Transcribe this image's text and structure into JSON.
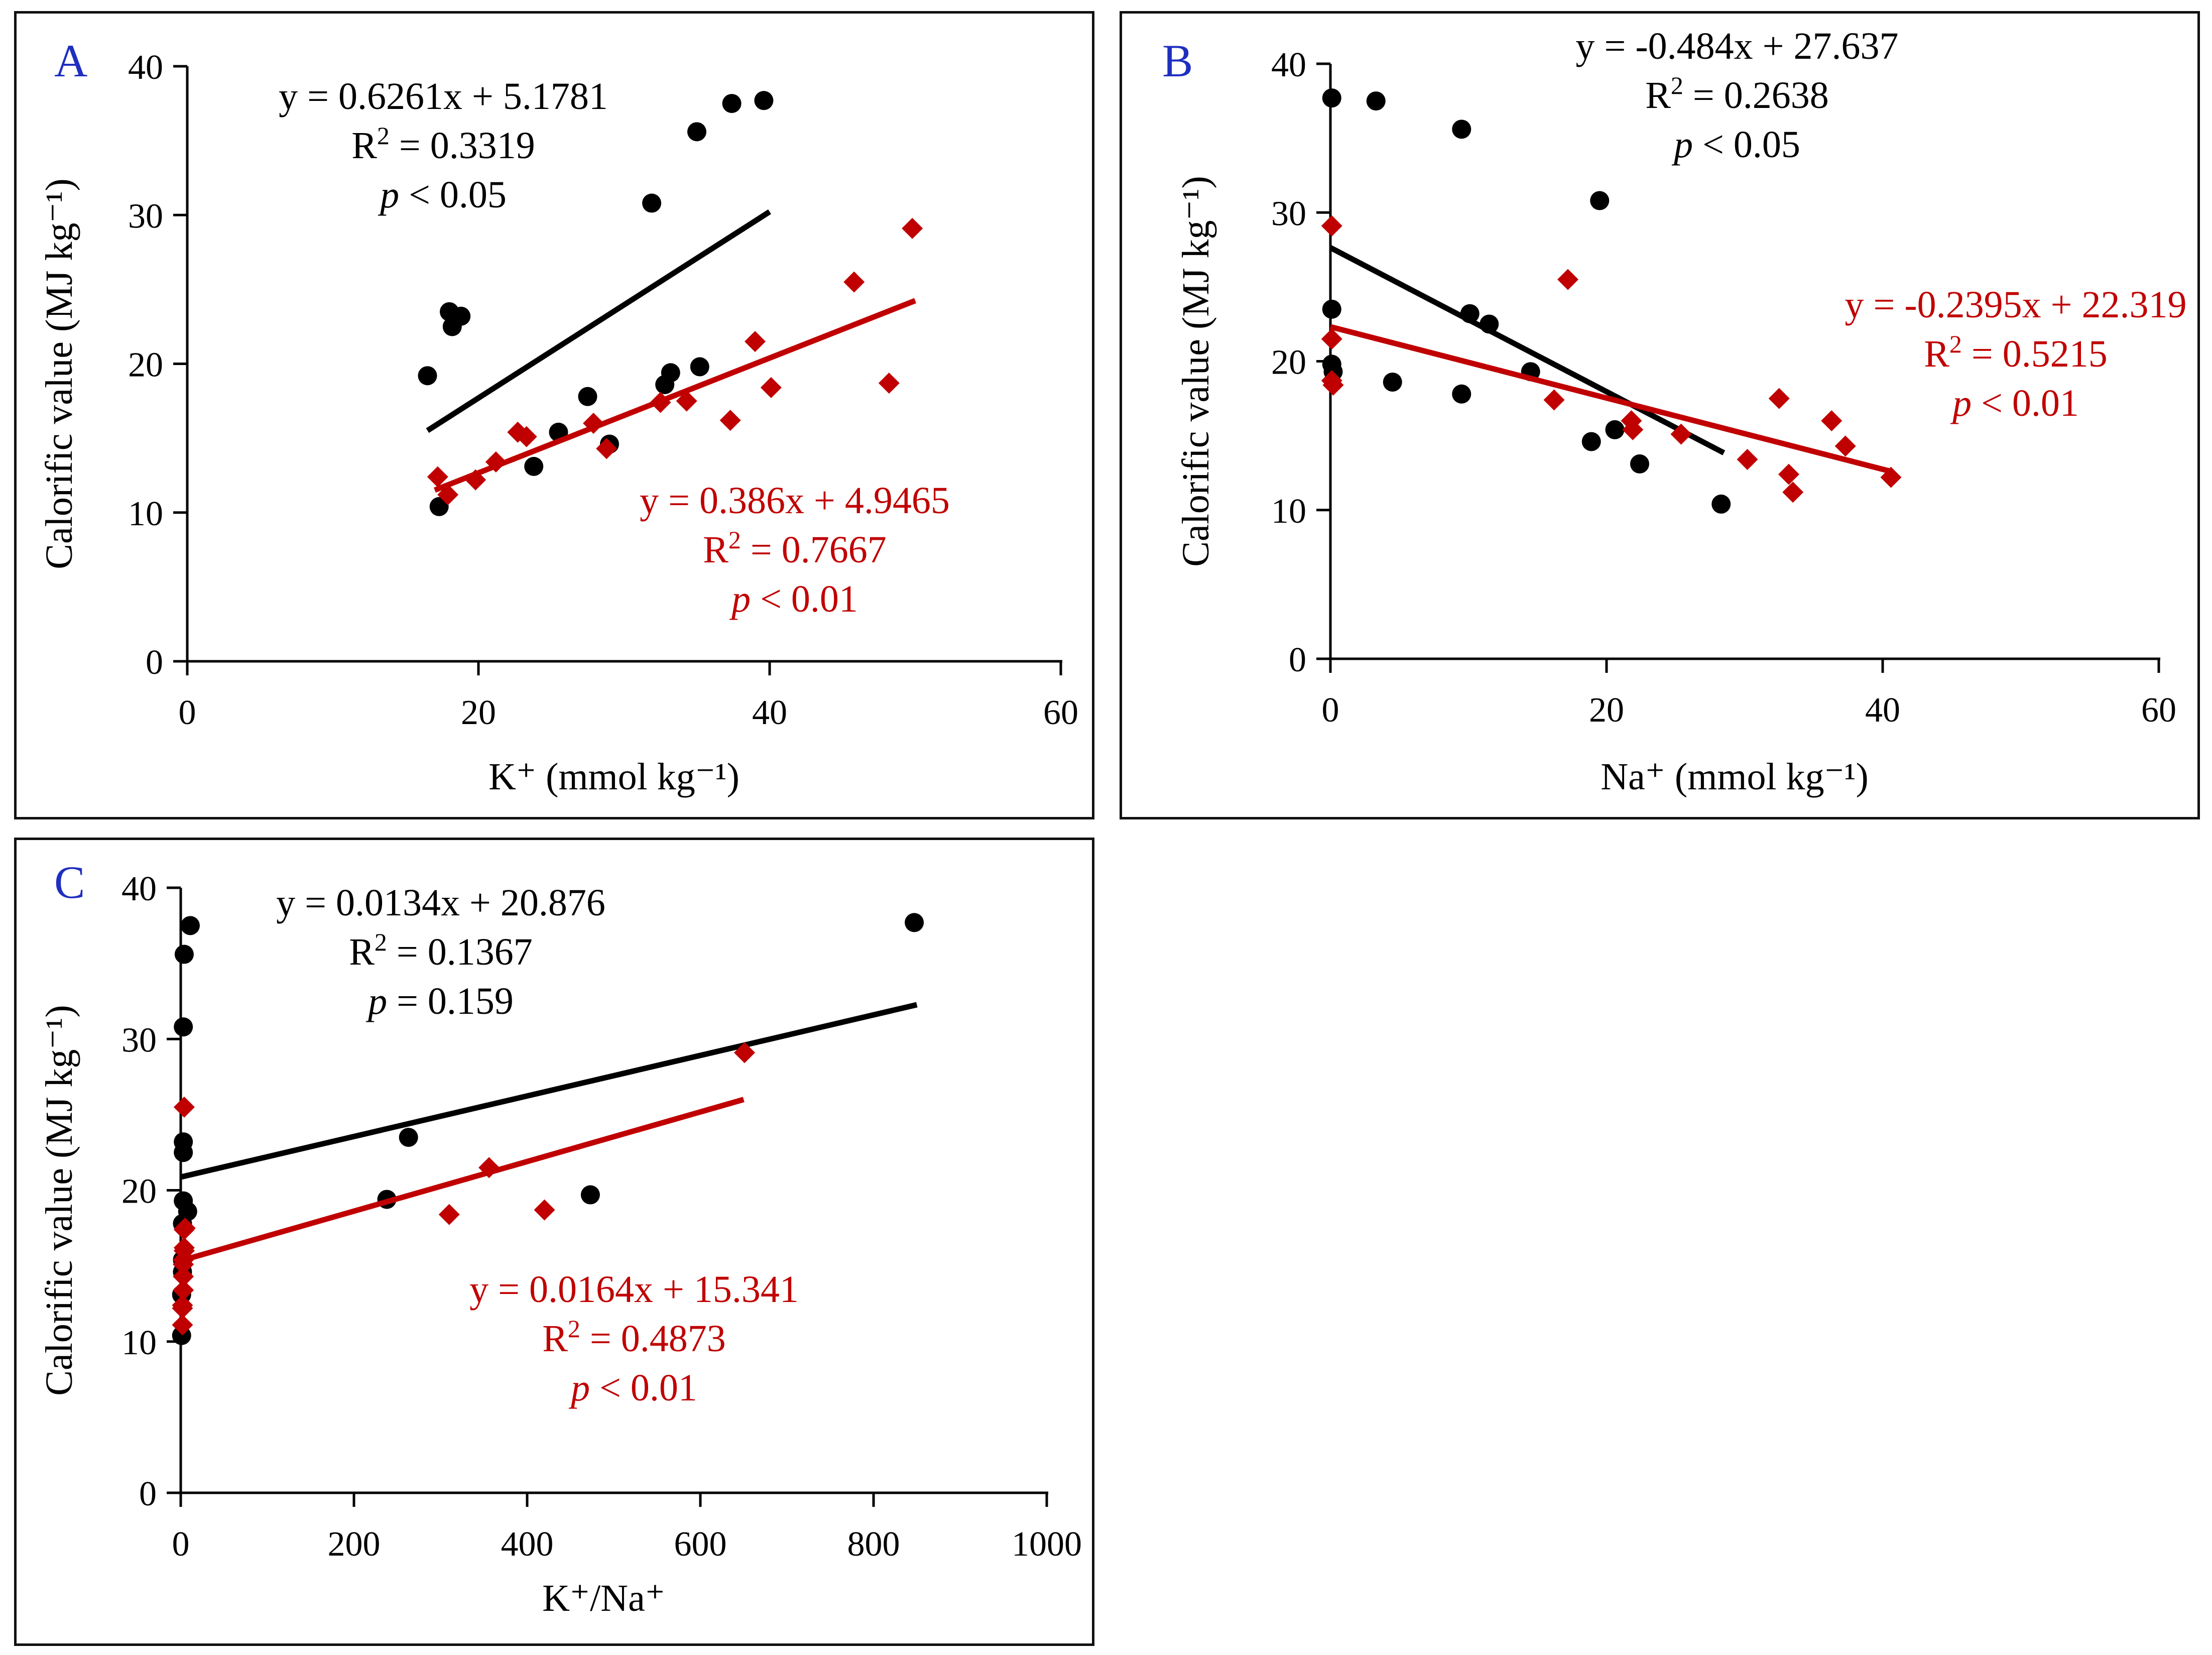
{
  "chart_data": [
    {
      "id": "A",
      "type": "scatter",
      "panel_label": "A",
      "xlabel": "K⁺ (mmol kg⁻¹)",
      "ylabel": "Calorific value (MJ kg⁻¹)",
      "xlim": [
        0,
        60
      ],
      "ylim": [
        0,
        40
      ],
      "xticks": [
        "0",
        "20",
        "40",
        "60"
      ],
      "yticks": [
        "0",
        "10",
        "20",
        "30",
        "40"
      ],
      "xtick_values": [
        0,
        20,
        40,
        60
      ],
      "ytick_values": [
        0,
        10,
        20,
        30,
        40
      ],
      "series": [
        {
          "name": "black",
          "color": "#000000",
          "marker": "circle",
          "points": [
            [
              16.5,
              19.2
            ],
            [
              17.3,
              10.4
            ],
            [
              18.0,
              23.5
            ],
            [
              18.2,
              22.5
            ],
            [
              18.8,
              23.2
            ],
            [
              23.8,
              13.1
            ],
            [
              25.5,
              15.4
            ],
            [
              27.5,
              17.8
            ],
            [
              29.0,
              14.6
            ],
            [
              31.9,
              30.8
            ],
            [
              32.8,
              18.6
            ],
            [
              33.2,
              19.4
            ],
            [
              35.0,
              35.6
            ],
            [
              35.2,
              19.8
            ],
            [
              37.4,
              37.5
            ],
            [
              39.6,
              37.7
            ]
          ],
          "trend": {
            "x_range": [
              16.5,
              40.0
            ],
            "slope": 0.6261,
            "intercept": 5.1781,
            "equation": "y = 0.6261x + 5.1781",
            "r2_prefix": "R",
            "r2_exp": "2",
            "r2_value": " = 0.3319",
            "p_symbol": "p",
            "p_value": " < 0.05"
          }
        },
        {
          "name": "red",
          "color": "#c00000",
          "marker": "diamond",
          "points": [
            [
              17.2,
              12.4
            ],
            [
              17.9,
              11.2
            ],
            [
              19.8,
              12.2
            ],
            [
              21.2,
              13.4
            ],
            [
              22.7,
              15.4
            ],
            [
              23.3,
              15.1
            ],
            [
              27.9,
              16.0
            ],
            [
              28.8,
              14.3
            ],
            [
              32.5,
              17.4
            ],
            [
              34.3,
              17.5
            ],
            [
              37.3,
              16.2
            ],
            [
              39.0,
              21.5
            ],
            [
              40.1,
              18.4
            ],
            [
              45.8,
              25.5
            ],
            [
              48.2,
              18.7
            ],
            [
              49.8,
              29.1
            ]
          ],
          "trend": {
            "x_range": [
              17.0,
              50.0
            ],
            "slope": 0.386,
            "intercept": 4.9465,
            "equation": "y = 0.386x + 4.9465",
            "r2_prefix": "R",
            "r2_exp": "2",
            "r2_value": " = 0.7667",
            "p_symbol": "p",
            "p_value": " < 0.01"
          }
        }
      ]
    },
    {
      "id": "B",
      "type": "scatter",
      "panel_label": "B",
      "xlabel": "Na⁺ (mmol kg⁻¹)",
      "ylabel": "Calorific value (MJ kg⁻¹)",
      "xlim": [
        0,
        60
      ],
      "ylim": [
        0,
        40
      ],
      "xticks": [
        "0",
        "20",
        "40",
        "60"
      ],
      "yticks": [
        "0",
        "10",
        "20",
        "30",
        "40"
      ],
      "xtick_values": [
        0,
        20,
        40,
        60
      ],
      "ytick_values": [
        0,
        10,
        20,
        30,
        40
      ],
      "series": [
        {
          "name": "black",
          "color": "#000000",
          "marker": "circle",
          "points": [
            [
              0.1,
              37.7
            ],
            [
              0.1,
              23.5
            ],
            [
              0.1,
              19.8
            ],
            [
              0.2,
              19.3
            ],
            [
              3.3,
              37.5
            ],
            [
              4.5,
              18.6
            ],
            [
              9.5,
              35.6
            ],
            [
              9.5,
              17.8
            ],
            [
              10.1,
              23.2
            ],
            [
              11.5,
              22.5
            ],
            [
              14.5,
              19.3
            ],
            [
              18.9,
              14.6
            ],
            [
              19.5,
              30.8
            ],
            [
              20.6,
              15.4
            ],
            [
              22.4,
              13.1
            ],
            [
              28.3,
              10.4
            ]
          ],
          "trend": {
            "x_range": [
              0.0,
              28.5
            ],
            "slope": -0.484,
            "intercept": 27.637,
            "equation": "y = -0.484x + 27.637",
            "r2_prefix": "R",
            "r2_exp": "2",
            "r2_value": " = 0.2638",
            "p_symbol": "p",
            "p_value": " < 0.05"
          }
        },
        {
          "name": "red",
          "color": "#c00000",
          "marker": "diamond",
          "points": [
            [
              0.1,
              29.1
            ],
            [
              0.1,
              21.5
            ],
            [
              0.1,
              18.7
            ],
            [
              0.2,
              18.4
            ],
            [
              16.2,
              17.4
            ],
            [
              17.2,
              25.5
            ],
            [
              21.8,
              16.0
            ],
            [
              21.9,
              15.4
            ],
            [
              25.4,
              15.1
            ],
            [
              30.2,
              13.4
            ],
            [
              32.5,
              17.5
            ],
            [
              33.2,
              12.4
            ],
            [
              33.5,
              11.2
            ],
            [
              36.3,
              16.0
            ],
            [
              37.3,
              14.3
            ],
            [
              40.6,
              12.2
            ]
          ],
          "trend": {
            "x_range": [
              0.0,
              40.6
            ],
            "slope": -0.2395,
            "intercept": 22.319,
            "equation": "y = -0.2395x + 22.319",
            "r2_prefix": "R",
            "r2_exp": "2",
            "r2_value": " = 0.5215",
            "p_symbol": "p",
            "p_value": " < 0.01"
          }
        }
      ]
    },
    {
      "id": "C",
      "type": "scatter",
      "panel_label": "C",
      "xlabel": "K⁺/Na⁺",
      "ylabel": "Calorific value (MJ kg⁻¹)",
      "xlim": [
        0,
        1000
      ],
      "ylim": [
        0,
        40
      ],
      "xticks": [
        "0",
        "200",
        "400",
        "600",
        "800",
        "1000"
      ],
      "yticks": [
        "0",
        "10",
        "20",
        "30",
        "40"
      ],
      "xtick_values": [
        0,
        200,
        400,
        600,
        800,
        1000
      ],
      "ytick_values": [
        0,
        10,
        20,
        30,
        40
      ],
      "series": [
        {
          "name": "black",
          "color": "#000000",
          "marker": "circle",
          "points": [
            [
              1,
              10.4
            ],
            [
              1,
              13.1
            ],
            [
              2,
              14.6
            ],
            [
              2,
              15.4
            ],
            [
              2,
              17.8
            ],
            [
              3,
              19.3
            ],
            [
              3,
              22.5
            ],
            [
              3,
              23.2
            ],
            [
              3,
              30.8
            ],
            [
              4,
              35.6
            ],
            [
              8,
              18.6
            ],
            [
              11,
              37.5
            ],
            [
              238,
              19.4
            ],
            [
              263,
              23.5
            ],
            [
              473,
              19.7
            ],
            [
              847,
              37.7
            ]
          ],
          "trend": {
            "x_range": [
              0,
              850
            ],
            "slope": 0.0134,
            "intercept": 20.876,
            "equation": "y = 0.0134x + 20.876",
            "r2_prefix": "R",
            "r2_exp": "2",
            "r2_value": " = 0.1367",
            "p_symbol": "p",
            "p_value": " = 0.159"
          }
        },
        {
          "name": "red",
          "color": "#c00000",
          "marker": "diamond",
          "points": [
            [
              2,
              11.1
            ],
            [
              2,
              12.2
            ],
            [
              2,
              12.4
            ],
            [
              3,
              13.4
            ],
            [
              3,
              14.3
            ],
            [
              3,
              15.1
            ],
            [
              3,
              15.4
            ],
            [
              4,
              16.0
            ],
            [
              4,
              16.2
            ],
            [
              4,
              17.4
            ],
            [
              5,
              17.5
            ],
            [
              4,
              25.5
            ],
            [
              310,
              18.4
            ],
            [
              356,
              21.5
            ],
            [
              420,
              18.7
            ],
            [
              651,
              29.1
            ]
          ],
          "trend": {
            "x_range": [
              0,
              650
            ],
            "slope": 0.0164,
            "intercept": 15.341,
            "equation": "y = 0.0164x + 15.341",
            "r2_prefix": "R",
            "r2_exp": "2",
            "r2_value": " = 0.4873",
            "p_symbol": "p",
            "p_value": " < 0.01"
          }
        }
      ]
    }
  ],
  "colors": {
    "black_series": "#000000",
    "red_series": "#c00000",
    "panel_label": "#1f2fbf"
  }
}
